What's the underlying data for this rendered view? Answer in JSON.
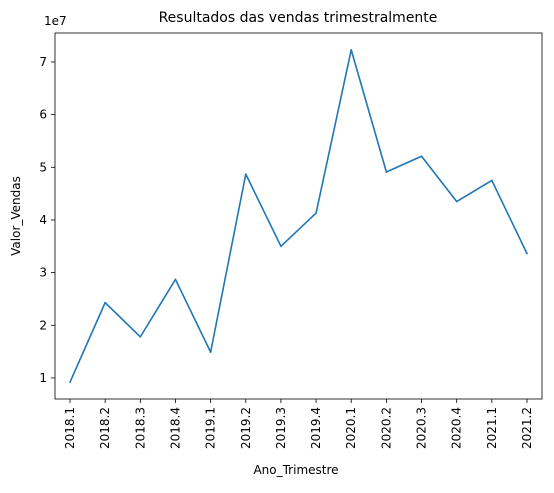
{
  "chart_data": {
    "type": "line",
    "title": "Resultados das vendas trimestralmente",
    "xlabel": "Ano_Trimestre",
    "ylabel": "Valor_Vendas",
    "y_scale_label": "1e7",
    "categories": [
      "2018.1",
      "2018.2",
      "2018.3",
      "2018.4",
      "2019.1",
      "2019.2",
      "2019.3",
      "2019.4",
      "2020.1",
      "2020.2",
      "2020.3",
      "2020.4",
      "2021.1",
      "2021.2"
    ],
    "series": [
      {
        "color": "#1f77b4",
        "values": [
          9200000,
          24300000,
          17800000,
          28700000,
          14900000,
          48700000,
          35000000,
          41300000,
          72300000,
          49100000,
          52100000,
          43500000,
          47500000,
          33600000
        ]
      }
    ],
    "y_ticks": [
      1,
      2,
      3,
      4,
      5,
      6,
      7
    ],
    "y_tick_multiplier": 10000000,
    "ylim": [
      6000000,
      75500000
    ],
    "grid": false,
    "legend": "none"
  }
}
